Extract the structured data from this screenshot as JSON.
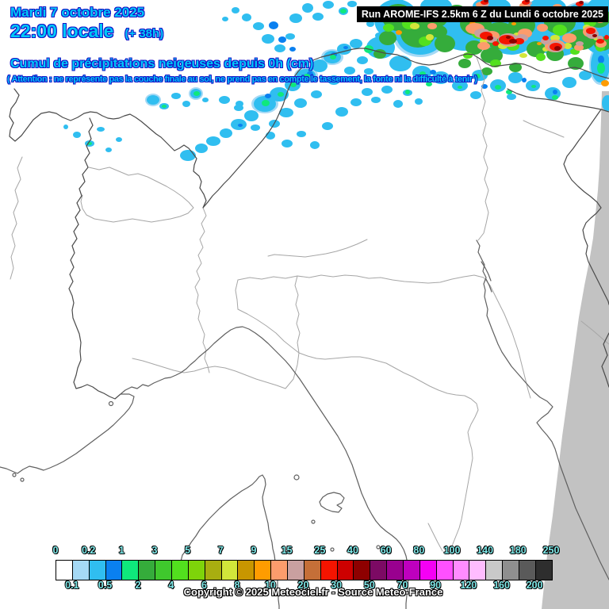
{
  "header": {
    "date": "Mardi 7 octobre 2025",
    "time": "22:00 locale",
    "offset": "(+ 38h)",
    "title": "Cumul de précipitations neigeuses depuis 0h (cm)",
    "warning": "( Attention : ne représente pas la couche finale au sol, ne prend pas en compte le tassement, la fonte ni la difficulté à tenir )",
    "run": "Run AROME-IFS 2.5km 6 Z du Lundi 6 octobre 2025"
  },
  "footer": {
    "copyright": "Copyright © 2025 Meteociel.fr - Source Meteo-France"
  },
  "scale": {
    "unit": "cm",
    "boundaries": [
      "0",
      "0.1",
      "0.2",
      "0.5",
      "1",
      "2",
      "3",
      "4",
      "5",
      "6",
      "7",
      "8",
      "9",
      "10",
      "15",
      "20",
      "25",
      "30",
      "40",
      "50",
      "60",
      "70",
      "80",
      "90",
      "100",
      "120",
      "140",
      "160",
      "180",
      "200",
      "250"
    ],
    "top_labels": [
      "0",
      "0.2",
      "1",
      "3",
      "5",
      "7",
      "9",
      "15",
      "25",
      "40",
      "60",
      "80",
      "100",
      "140",
      "180",
      "250"
    ],
    "bottom_labels": [
      "0.1",
      "0.5",
      "2",
      "4",
      "6",
      "8",
      "10",
      "20",
      "30",
      "50",
      "70",
      "90",
      "120",
      "160",
      "200"
    ],
    "colors": [
      "#FFFFFF",
      "#A5D9F5",
      "#30BEF0",
      "#0A80F0",
      "#0FE87C",
      "#35AC3B",
      "#3FC82D",
      "#52E01E",
      "#7ED40A",
      "#A8AE10",
      "#D2E63A",
      "#C89600",
      "#FF9C00",
      "#FC9C6C",
      "#C9A0A0",
      "#C56F38",
      "#F51400",
      "#CD0000",
      "#8E0000",
      "#7C0A64",
      "#99008F",
      "#BE00BE",
      "#F500F5",
      "#FF50FF",
      "#FF8CFF",
      "#FFBCFF",
      "#C9C9C9",
      "#8F8F8F",
      "#5A5A5A",
      "#2E2E2E"
    ],
    "label_color": "#7FE9E9"
  },
  "map": {
    "background": "#FFFFFF",
    "domain_mask": "#C2C2C2",
    "country_border": "#4A4A4A",
    "region_border": "#A6A6A6",
    "coastline": "#606060"
  },
  "text_colors": {
    "header_fill": "#00C8F8",
    "header_outline": "#1616C8",
    "run_bg": "#000000",
    "run_fg": "#FFFFFF"
  }
}
